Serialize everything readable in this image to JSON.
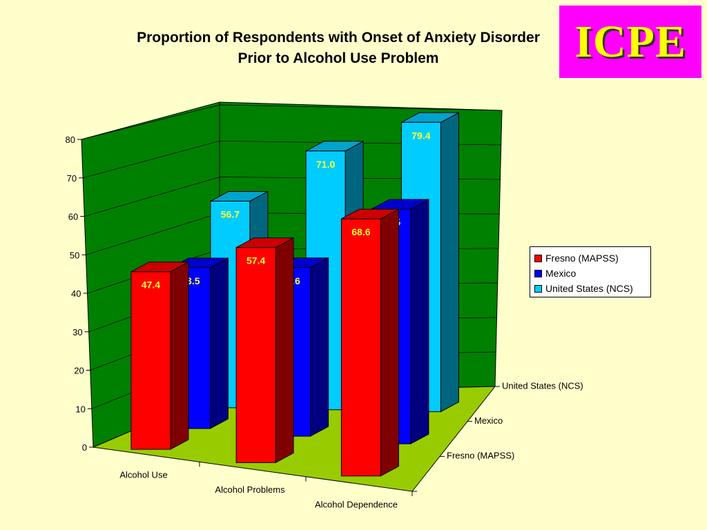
{
  "title": {
    "line1": "Proportion of Respondents with Onset of Anxiety Disorder",
    "line2": "Prior to Alcohol Use Problem"
  },
  "logo": {
    "text": "ICPE"
  },
  "chart_data": {
    "type": "bar",
    "variant": "3d-clustered-depth",
    "categories": [
      "Alcohol Use",
      "Alcohol Problems",
      "Alcohol Dependence"
    ],
    "series": [
      {
        "name": "Fresno (MAPSS)",
        "values": [
          47.4,
          57.4,
          68.6
        ],
        "color": "#ff0000",
        "label_color": "#ffff33"
      },
      {
        "name": "Mexico",
        "values": [
          43.5,
          45.6,
          63.5
        ],
        "color": "#0000ff",
        "label_color": "#ffff33"
      },
      {
        "name": "United States (NCS)",
        "values": [
          56.7,
          71.0,
          79.4
        ],
        "color": "#00ccff",
        "label_color": "#ffff33"
      }
    ],
    "ylim": [
      0,
      80
    ],
    "yticks": [
      "0",
      "10",
      "20",
      "30",
      "40",
      "50",
      "60",
      "70",
      "80"
    ],
    "depth_labels": [
      "Fresno (MAPSS)",
      "Mexico",
      "United States (NCS)"
    ],
    "grid": true,
    "legend_position": "right",
    "wall_color": "#008000",
    "floor_color": "#99cc00"
  }
}
